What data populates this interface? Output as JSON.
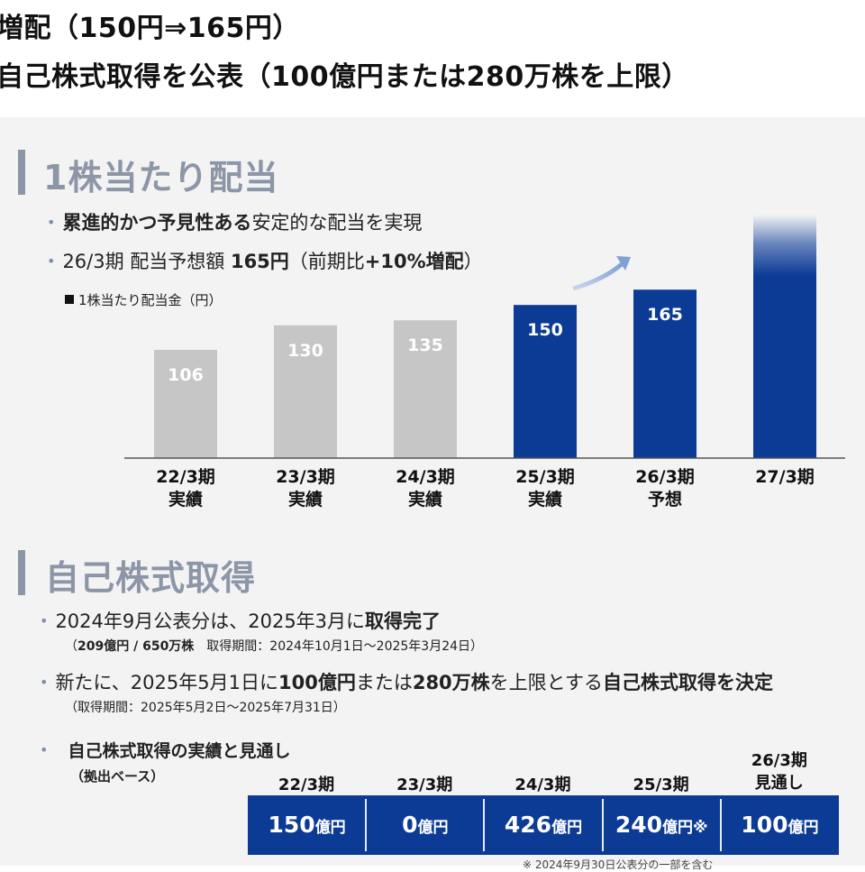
{
  "header": {
    "line1": "増配（150円⇒165円）",
    "line2": "自己株式取得を公表（100億円または280万株を上限）"
  },
  "dividend_section": {
    "title": "1株当たり配当",
    "bullet1_bold": "累進的かつ予見性ある",
    "bullet1_rest": "安定的な配当を実現",
    "bullet2_a": "26/3期 配当予想額 ",
    "bullet2_b": "165円",
    "bullet2_c": "（前期比",
    "bullet2_d": "+10%増配",
    "bullet2_e": "）",
    "legend": "1株当たり配当金（円）"
  },
  "chart_data": {
    "type": "bar",
    "categories": [
      "22/3期\n実績",
      "23/3期\n実績",
      "24/3期\n実績",
      "25/3期\n実績",
      "26/3期\n予想",
      "27/3期"
    ],
    "category_lines": [
      [
        "22/3期",
        "実績"
      ],
      [
        "23/3期",
        "実績"
      ],
      [
        "24/3期",
        "実績"
      ],
      [
        "25/3期",
        "実績"
      ],
      [
        "26/3期",
        "予想"
      ],
      [
        "27/3期",
        ""
      ]
    ],
    "values": [
      106,
      130,
      135,
      150,
      165,
      null
    ],
    "value_labels": [
      "106",
      "130",
      "135",
      "150",
      "165",
      ""
    ],
    "colors": [
      "#c6c6c6",
      "#c6c6c6",
      "#c6c6c6",
      "#0c3b96",
      "#0c3b96",
      "#0c3b96"
    ],
    "note": "27/3期 bar shown without a value (faded top)",
    "ylabel": "1株当たり配当金（円）",
    "ylim": [
      0,
      200
    ]
  },
  "buyback_section": {
    "title": "自己株式取得",
    "bullet1_a": "2024年9月公表分は、2025年3月に",
    "bullet1_b": "取得完了",
    "sub1_bold": "209億円 / 650万株",
    "sub1_rest": "　取得期間：2024年10月1日～2025年3月24日）",
    "sub1_open": "（",
    "bullet2_a": "新たに、2025年5月1日に",
    "bullet2_b": "100億円",
    "bullet2_c": "または",
    "bullet2_d": "280万株",
    "bullet2_e": "を上限とする",
    "bullet2_f": "自己株式取得を決定",
    "sub2": "（取得期間：2025年5月2日～2025年7月31日）",
    "bullet3": "自己株式取得の実績と見通し",
    "bullet3_sub": "（拠出ベース）"
  },
  "buyback_table": {
    "headers": [
      [
        "22/3期"
      ],
      [
        "23/3期"
      ],
      [
        "24/3期"
      ],
      [
        "25/3期"
      ],
      [
        "26/3期",
        "見通し"
      ]
    ],
    "cells": [
      {
        "num": "150",
        "unit": "億円",
        "mark": ""
      },
      {
        "num": "0",
        "unit": "億円",
        "mark": ""
      },
      {
        "num": "426",
        "unit": "億円",
        "mark": ""
      },
      {
        "num": "240",
        "unit": "億円",
        "mark": "※"
      },
      {
        "num": "100",
        "unit": "億円",
        "mark": ""
      }
    ],
    "footnote": "※ 2024年9月30日公表分の一部を含む"
  },
  "colors": {
    "accent_blue": "#0c3b96",
    "gray_bar": "#c6c6c6",
    "section_gray": "#8c96a6",
    "panel_bg": "#f3f3f4"
  }
}
